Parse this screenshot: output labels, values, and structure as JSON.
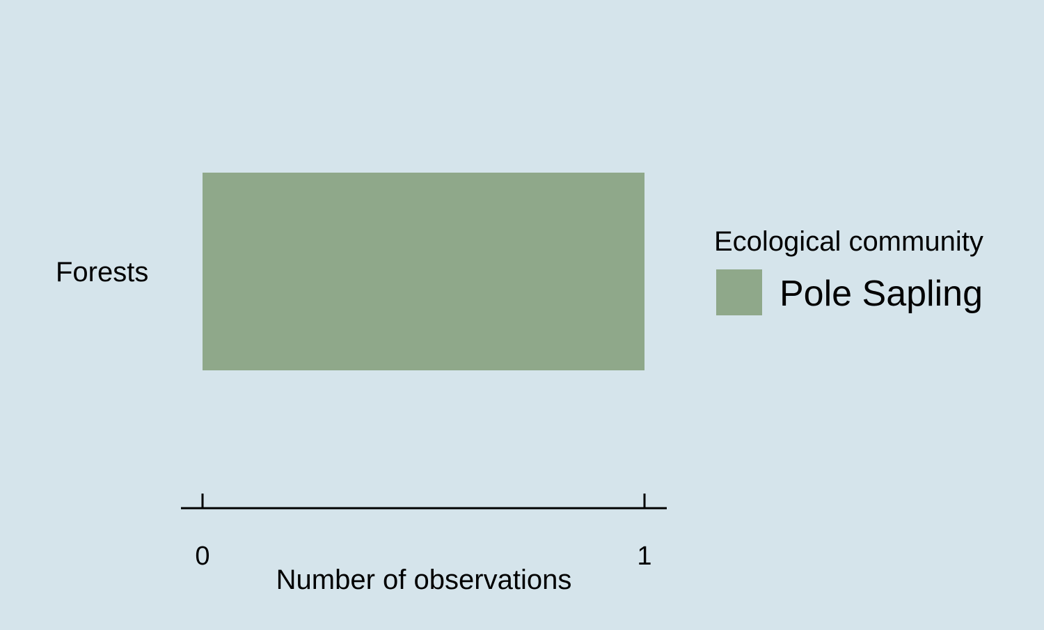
{
  "chart_data": {
    "type": "bar",
    "orientation": "horizontal",
    "categories": [
      "Forests"
    ],
    "series": [
      {
        "name": "Pole Sapling",
        "values": [
          1
        ],
        "color": "#8fa88a"
      }
    ],
    "xlabel": "Number of observations",
    "ylabel": "",
    "xlim": [
      0,
      1
    ],
    "xticks": [
      {
        "value": 0,
        "label": "0"
      },
      {
        "value": 1,
        "label": "1"
      }
    ],
    "legend": {
      "title": "Ecological community",
      "placement": "right"
    },
    "grid": false,
    "background_color": "#d5e4eb",
    "axis_color": "#000000"
  }
}
